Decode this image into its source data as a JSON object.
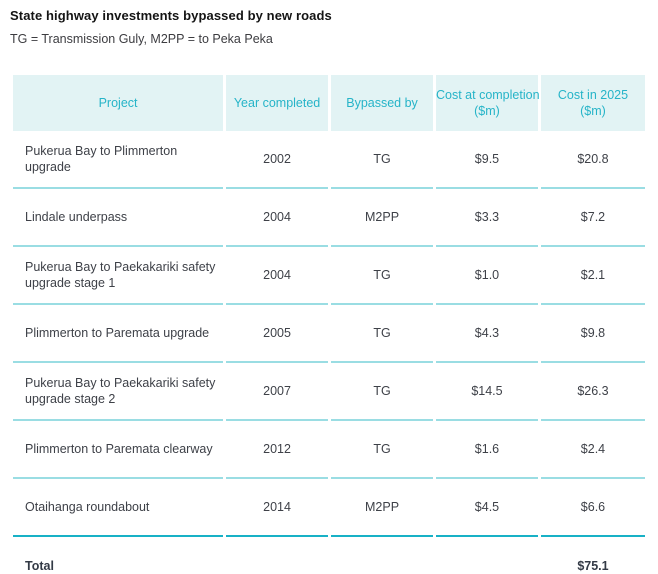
{
  "page": {
    "title": "State highway investments bypassed by new roads",
    "legend": "TG = Transmission Guly, M2PP = to Peka Peka"
  },
  "colors": {
    "header_background": "#e2f3f4",
    "header_text": "#26b4c8",
    "row_separator": "#9adde3",
    "strong_separator": "#18b1c6",
    "body_text": "#3e4148"
  },
  "table": {
    "headers": [
      {
        "label": "Project"
      },
      {
        "label": "Year completed"
      },
      {
        "label": "Bypassed by"
      },
      {
        "label": "Cost at completion",
        "unit": "($m)"
      },
      {
        "label": "Cost in 2025",
        "unit": "($m)"
      }
    ],
    "rows": [
      {
        "project": "Pukerua Bay to Plimmerton upgrade",
        "year": "2002",
        "bypassed_by": "TG",
        "cost_at_completion": "$9.5",
        "cost_2025": "$20.8"
      },
      {
        "project": "Lindale underpass",
        "year": "2004",
        "bypassed_by": "M2PP",
        "cost_at_completion": "$3.3",
        "cost_2025": "$7.2"
      },
      {
        "project": "Pukerua Bay to Paekakariki safety upgrade stage 1",
        "year": "2004",
        "bypassed_by": "TG",
        "cost_at_completion": "$1.0",
        "cost_2025": "$2.1"
      },
      {
        "project": "Plimmerton to Paremata upgrade",
        "year": "2005",
        "bypassed_by": "TG",
        "cost_at_completion": "$4.3",
        "cost_2025": "$9.8"
      },
      {
        "project": "Pukerua Bay to Paekakariki safety upgrade stage 2",
        "year": "2007",
        "bypassed_by": "TG",
        "cost_at_completion": "$14.5",
        "cost_2025": "$26.3"
      },
      {
        "project": "Plimmerton to Paremata clearway",
        "year": "2012",
        "bypassed_by": "TG",
        "cost_at_completion": "$1.6",
        "cost_2025": "$2.4"
      },
      {
        "project": "Otaihanga roundabout",
        "year": "2014",
        "bypassed_by": "M2PP",
        "cost_at_completion": "$4.5",
        "cost_2025": "$6.6"
      }
    ],
    "total": {
      "label": "Total",
      "cost_2025": "$75.1"
    }
  },
  "chart_data": {
    "type": "table",
    "title": "State highway investments bypassed by new roads",
    "subtitle": "TG = Transmission Guly, M2PP = to Peka Peka",
    "columns": [
      "Project",
      "Year completed",
      "Bypassed by",
      "Cost at completion ($m)",
      "Cost in 2025 ($m)"
    ],
    "rows": [
      [
        "Pukerua Bay to Plimmerton upgrade",
        2002,
        "TG",
        9.5,
        20.8
      ],
      [
        "Lindale underpass",
        2004,
        "M2PP",
        3.3,
        7.2
      ],
      [
        "Pukerua Bay to Paekakariki safety upgrade stage 1",
        2004,
        "TG",
        1.0,
        2.1
      ],
      [
        "Plimmerton to Paremata upgrade",
        2005,
        "TG",
        4.3,
        9.8
      ],
      [
        "Pukerua Bay to Paekakariki safety upgrade stage 2",
        2007,
        "TG",
        14.5,
        26.3
      ],
      [
        "Plimmerton to Paremata clearway",
        2012,
        "TG",
        1.6,
        2.4
      ],
      [
        "Otaihanga roundabout",
        2014,
        "M2PP",
        4.5,
        6.6
      ]
    ],
    "total": {
      "label": "Total",
      "cost_in_2025": 75.1
    }
  }
}
